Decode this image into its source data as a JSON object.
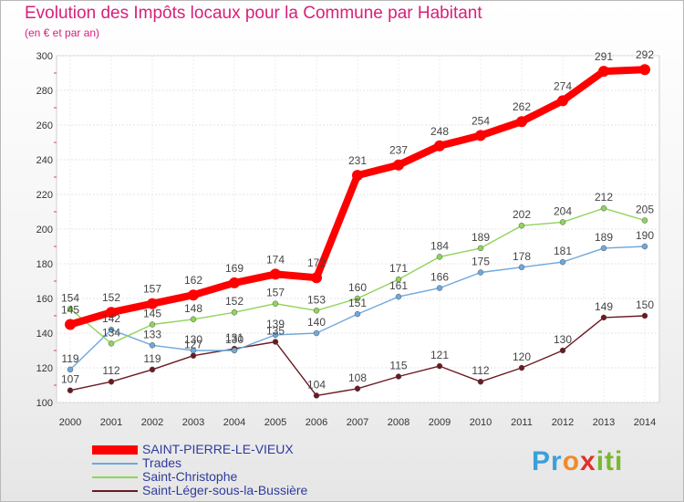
{
  "chart_data": {
    "type": "line",
    "title": "Evolution des Impôts locaux pour la Commune par Habitant",
    "subtitle": "(en € et par an)",
    "xlabel": "",
    "ylabel": "",
    "x": [
      "2000",
      "2001",
      "2002",
      "2003",
      "2004",
      "2005",
      "2006",
      "2007",
      "2008",
      "2009",
      "2010",
      "2011",
      "2012",
      "2013",
      "2014"
    ],
    "ylim": [
      100,
      300
    ],
    "yticks": [
      100,
      120,
      140,
      160,
      180,
      200,
      220,
      240,
      260,
      280,
      300
    ],
    "grid": true,
    "legend_position": "bottom-left",
    "series": [
      {
        "name": "SAINT-PIERRE-LE-VIEUX",
        "color": "#ff0000",
        "values": [
          145,
          152,
          157,
          162,
          169,
          174,
          172,
          231,
          237,
          248,
          254,
          262,
          274,
          291,
          292
        ]
      },
      {
        "name": "Trades",
        "color": "#6fa8dc",
        "values": [
          119,
          142,
          133,
          130,
          130,
          139,
          140,
          151,
          161,
          166,
          175,
          178,
          181,
          189,
          190
        ]
      },
      {
        "name": "Saint-Christophe",
        "color": "#8fd45a",
        "values": [
          154,
          134,
          145,
          148,
          152,
          157,
          153,
          160,
          171,
          184,
          189,
          202,
          204,
          212,
          205
        ]
      },
      {
        "name": "Saint-Léger-sous-la-Bussière",
        "color": "#6b1a22",
        "values": [
          107,
          112,
          119,
          127,
          131,
          135,
          104,
          108,
          115,
          121,
          112,
          120,
          130,
          149,
          150
        ]
      }
    ]
  },
  "logo": {
    "p1": "Pr",
    "p2": "o",
    "p3": "x",
    "p4": "iti"
  }
}
